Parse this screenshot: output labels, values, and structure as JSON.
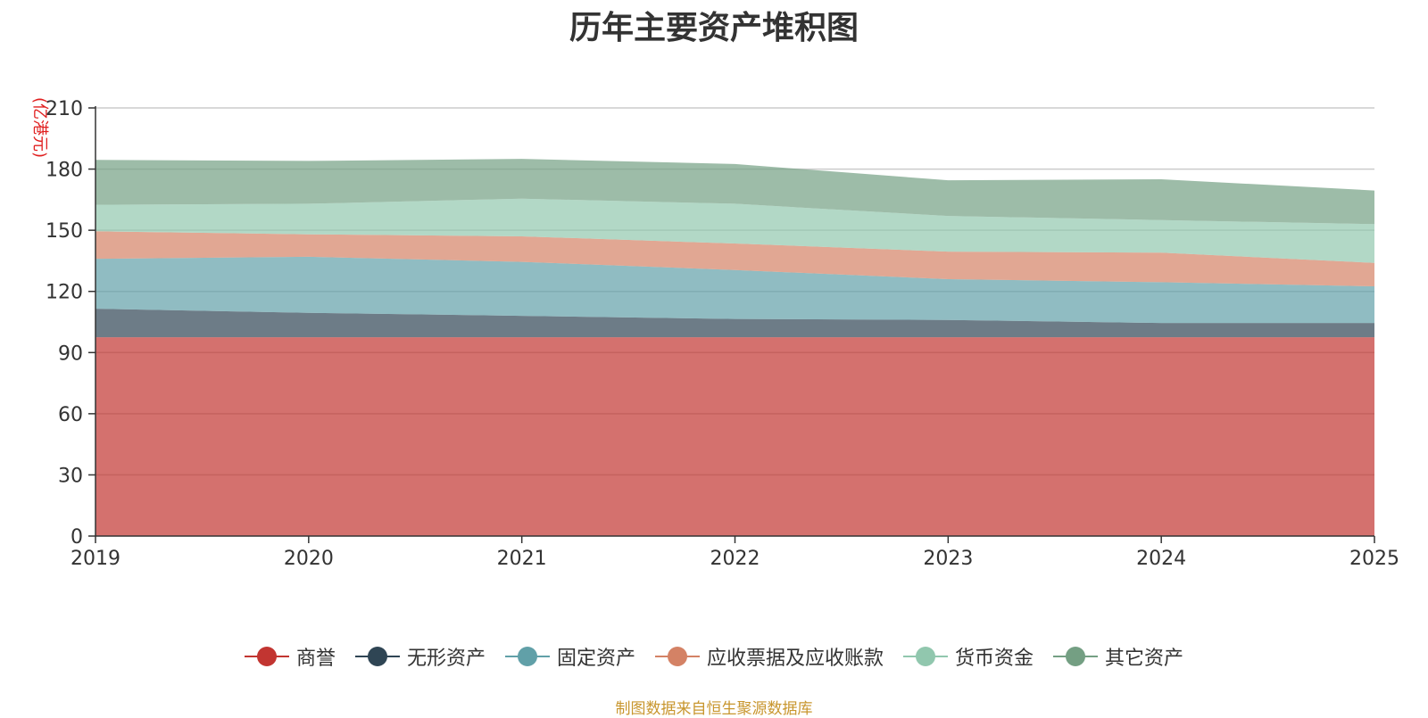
{
  "chart_data": {
    "type": "area",
    "stacked": true,
    "title": "历年主要资产堆积图",
    "unit_label": "(亿港元)",
    "x": [
      "2019",
      "2020",
      "2021",
      "2022",
      "2023",
      "2024",
      "2025"
    ],
    "ylim": [
      0,
      210
    ],
    "y_ticks": [
      "0",
      "30",
      "60",
      "90",
      "120",
      "150",
      "180",
      "210"
    ],
    "grid": true,
    "legend_position": "bottom",
    "series": [
      {
        "name": "商誉",
        "color": "#c23531",
        "values": [
          97.5,
          97.5,
          97.5,
          97.5,
          97.5,
          97.5,
          97.5
        ]
      },
      {
        "name": "无形资产",
        "color": "#2f4554",
        "values": [
          14,
          12,
          10.5,
          9,
          8.5,
          7,
          7
        ]
      },
      {
        "name": "固定资产",
        "color": "#61a0a8",
        "values": [
          24.5,
          27.5,
          26.5,
          24,
          20,
          20,
          18
        ]
      },
      {
        "name": "应收票据及应收账款",
        "color": "#d48265",
        "values": [
          13.5,
          11,
          12.5,
          13,
          13.5,
          14.5,
          11.5
        ]
      },
      {
        "name": "货币资金",
        "color": "#91c7ae",
        "values": [
          13,
          15,
          18.5,
          19.5,
          17.5,
          16,
          19
        ]
      },
      {
        "name": "其它资产",
        "color": "#749f83",
        "values": [
          22,
          21,
          19.5,
          19.5,
          17.5,
          20,
          16.5
        ]
      }
    ]
  },
  "source_note": "制图数据来自恒生聚源数据库"
}
